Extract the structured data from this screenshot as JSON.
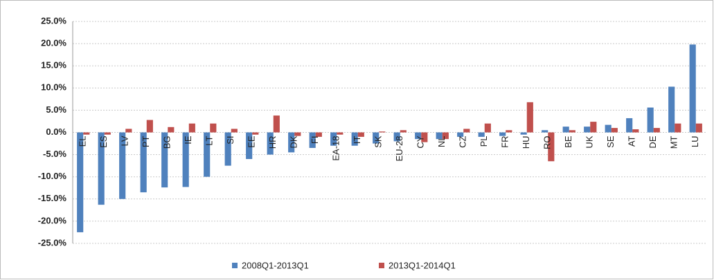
{
  "chart_data": {
    "type": "bar",
    "categories": [
      "EL",
      "ES",
      "LV",
      "PT",
      "BG",
      "IE",
      "LT",
      "SI",
      "EE",
      "HR",
      "DK",
      "FI",
      "EA-18",
      "IT",
      "SK",
      "EU-28",
      "CY",
      "NL",
      "CZ",
      "PL",
      "FR",
      "HU",
      "RO",
      "BE",
      "UK",
      "SE",
      "AT",
      "DE",
      "MT",
      "LU"
    ],
    "series": [
      {
        "name": "2008Q1-2013Q1",
        "color": "#4f81bd",
        "values": [
          -22.5,
          -16.3,
          -15.0,
          -13.5,
          -12.4,
          -12.3,
          -10.0,
          -7.5,
          -6.0,
          -5.0,
          -4.5,
          -3.5,
          -3.0,
          -3.0,
          -2.5,
          -2.0,
          -1.5,
          -1.5,
          -1.0,
          -1.0,
          -0.8,
          -0.5,
          0.5,
          1.3,
          1.3,
          1.7,
          3.2,
          5.6,
          10.3,
          19.8
        ]
      },
      {
        "name": "2013Q1-2014Q1",
        "color": "#c0504d",
        "values": [
          -0.5,
          -0.5,
          0.8,
          2.8,
          1.2,
          2.0,
          2.0,
          0.8,
          -0.5,
          3.8,
          -0.8,
          -1.0,
          -0.5,
          -1.0,
          0.2,
          0.5,
          -2.2,
          -1.5,
          0.8,
          2.0,
          0.5,
          6.8,
          -6.5,
          0.5,
          2.4,
          1.0,
          0.7,
          1.0,
          2.0,
          2.0
        ]
      }
    ],
    "ylim": [
      -25,
      25
    ],
    "yticks": [
      {
        "value": -25,
        "label": "-25.0%"
      },
      {
        "value": -20,
        "label": "-20.0%"
      },
      {
        "value": -15,
        "label": "-15.0%"
      },
      {
        "value": -10,
        "label": "-10.0%"
      },
      {
        "value": -5,
        "label": "-5.0%"
      },
      {
        "value": 0,
        "label": "0.0%"
      },
      {
        "value": 5,
        "label": "5.0%"
      },
      {
        "value": 10,
        "label": "10.0%"
      },
      {
        "value": 15,
        "label": "15.0%"
      },
      {
        "value": 20,
        "label": "20.0%"
      },
      {
        "value": 25,
        "label": "25.0%"
      }
    ],
    "grid": true,
    "legend": "bottom"
  }
}
